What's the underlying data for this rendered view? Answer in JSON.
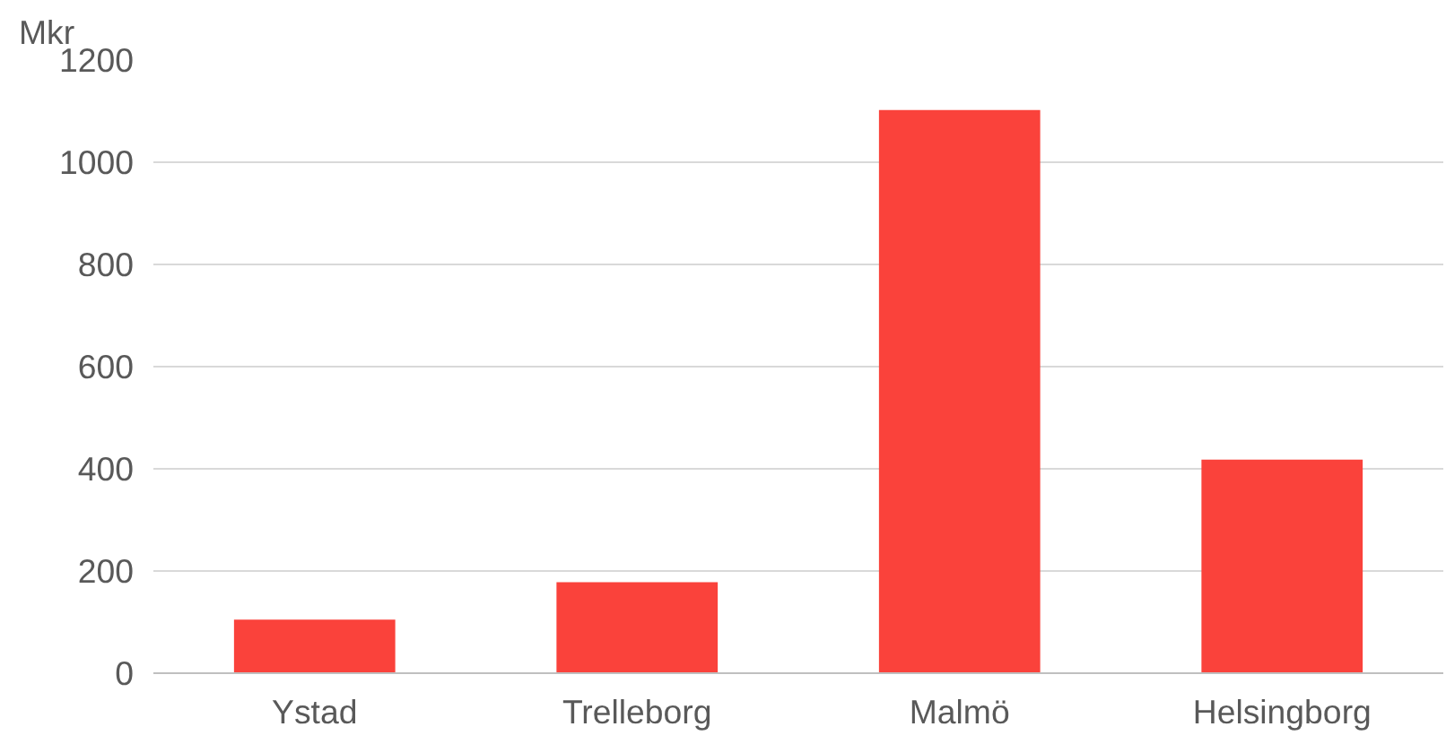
{
  "chart_data": {
    "type": "bar",
    "ylabel": "Mkr",
    "categories": [
      "Ystad",
      "Trelleborg",
      "Malmö",
      "Helsingborg"
    ],
    "values": [
      105,
      178,
      1102,
      418
    ],
    "color": "#fa423b",
    "ylim": [
      0,
      1200
    ],
    "yticks": [
      0,
      200,
      400,
      600,
      800,
      1000,
      1200
    ],
    "grid": "y"
  }
}
